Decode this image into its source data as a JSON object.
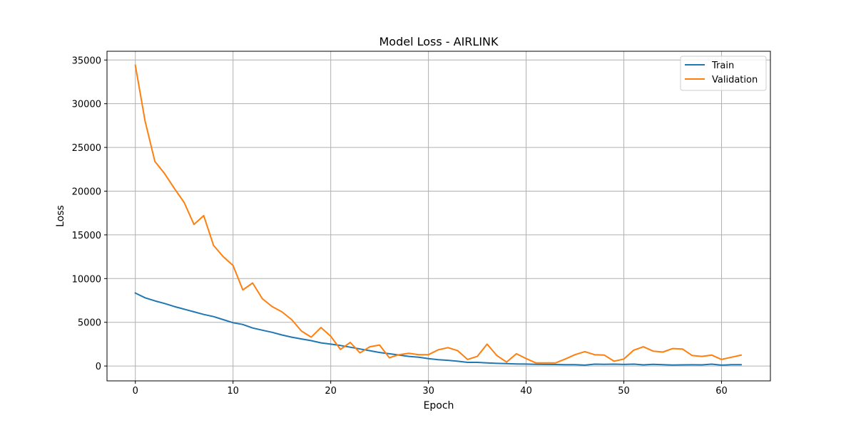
{
  "chart_data": {
    "type": "line",
    "title": "Model Loss - AIRLINK",
    "xlabel": "Epoch",
    "ylabel": "Loss",
    "xlim": [
      -2.9,
      65
    ],
    "ylim": [
      -1700,
      36000
    ],
    "xticks": [
      0,
      10,
      20,
      30,
      40,
      50,
      60
    ],
    "yticks": [
      0,
      5000,
      10000,
      15000,
      20000,
      25000,
      30000,
      35000
    ],
    "grid": true,
    "legend_position": "top-right",
    "x": [
      0,
      1,
      2,
      3,
      4,
      5,
      6,
      7,
      8,
      9,
      10,
      11,
      12,
      13,
      14,
      15,
      16,
      17,
      18,
      19,
      20,
      21,
      22,
      23,
      24,
      25,
      26,
      27,
      28,
      29,
      30,
      31,
      32,
      33,
      34,
      35,
      36,
      37,
      38,
      39,
      40,
      41,
      42,
      43,
      44,
      45,
      46,
      47,
      48,
      49,
      50,
      51,
      52,
      53,
      54,
      55,
      56,
      57,
      58,
      59,
      60,
      61,
      62
    ],
    "series": [
      {
        "name": "Train",
        "color": "#1f77b4",
        "values": [
          8350,
          7800,
          7450,
          7150,
          6800,
          6500,
          6200,
          5900,
          5650,
          5300,
          4950,
          4750,
          4350,
          4100,
          3850,
          3550,
          3300,
          3100,
          2900,
          2650,
          2500,
          2350,
          2150,
          1950,
          1750,
          1550,
          1400,
          1250,
          1100,
          1000,
          850,
          720,
          650,
          550,
          420,
          420,
          350,
          300,
          270,
          240,
          220,
          200,
          180,
          170,
          160,
          150,
          100,
          210,
          190,
          210,
          180,
          210,
          130,
          200,
          150,
          110,
          130,
          140,
          130,
          210,
          100,
          150,
          150
        ]
      },
      {
        "name": "Validation",
        "color": "#ff7f0e",
        "values": [
          34400,
          28000,
          23400,
          22000,
          20300,
          18700,
          16200,
          17200,
          13800,
          12500,
          11500,
          8700,
          9500,
          7700,
          6800,
          6200,
          5300,
          4000,
          3300,
          4400,
          3400,
          1900,
          2700,
          1500,
          2200,
          2400,
          950,
          1300,
          1450,
          1300,
          1300,
          1850,
          2100,
          1750,
          750,
          1100,
          2500,
          1200,
          450,
          1400,
          850,
          350,
          350,
          350,
          800,
          1300,
          1650,
          1300,
          1250,
          550,
          800,
          1800,
          2200,
          1700,
          1600,
          2000,
          1950,
          1200,
          1100,
          1250,
          750,
          1000,
          1250
        ]
      }
    ]
  }
}
